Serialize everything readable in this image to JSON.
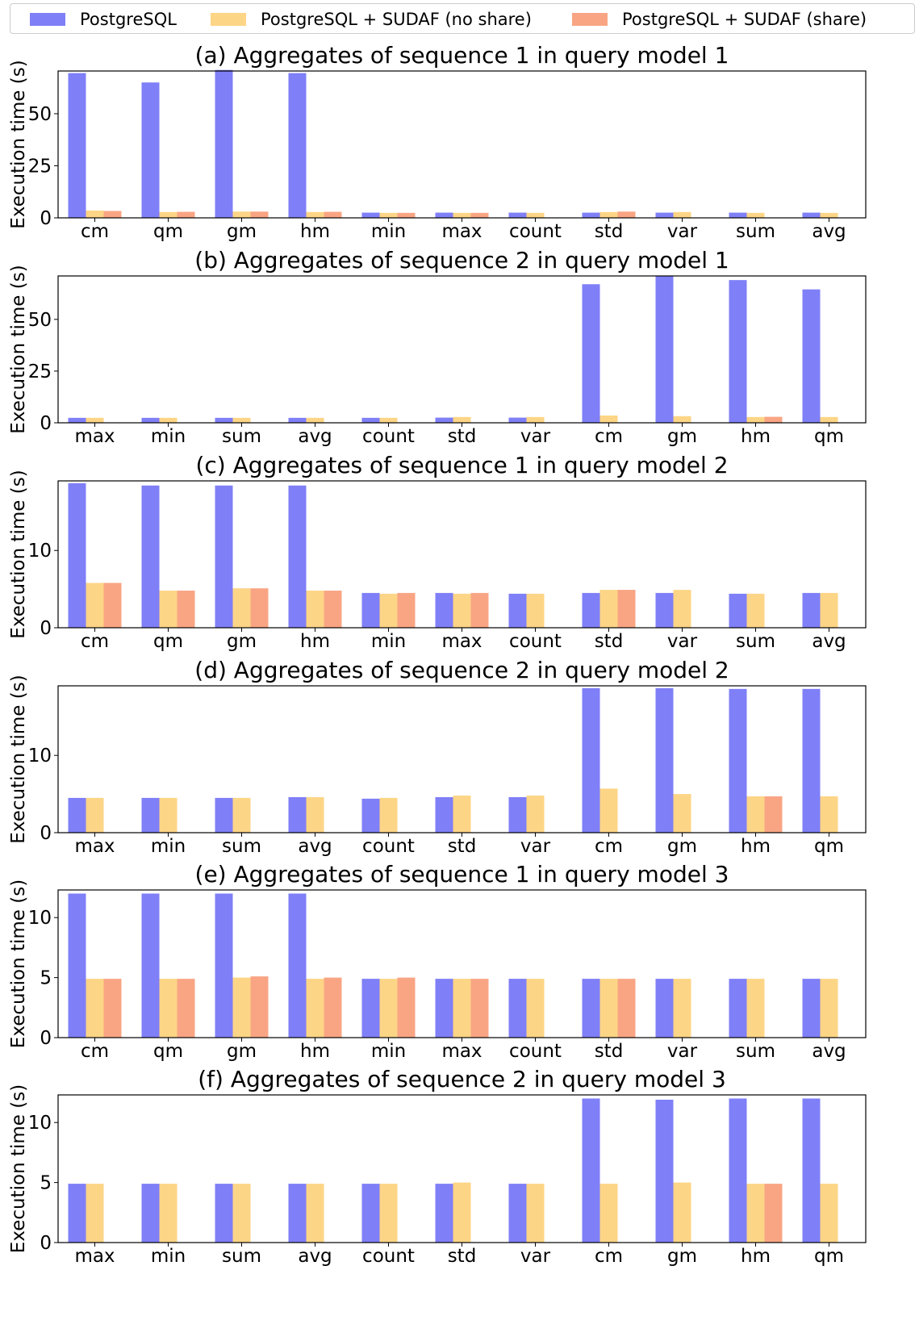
{
  "legend": {
    "entries": [
      {
        "label": "PostgreSQL",
        "color": "#7f7ff7"
      },
      {
        "label": "PostgreSQL + SUDAF (no share)",
        "color": "#fdd586"
      },
      {
        "label": "PostgreSQL + SUDAF (share)",
        "color": "#f9a584"
      }
    ]
  },
  "chart_data": [
    {
      "type": "bar",
      "title": "(a) Aggregates of sequence 1 in query model 1",
      "ylabel": "Execution time (s)",
      "ylim": [
        0,
        70.5
      ],
      "yticks": [
        0,
        25,
        50
      ],
      "categories": [
        "cm",
        "qm",
        "gm",
        "hm",
        "min",
        "max",
        "count",
        "std",
        "var",
        "sum",
        "avg"
      ],
      "series": [
        {
          "name": "PostgreSQL",
          "values": [
            69.5,
            65.0,
            71.0,
            69.5,
            2.5,
            2.5,
            2.5,
            2.5,
            2.5,
            2.5,
            2.5
          ]
        },
        {
          "name": "PostgreSQL + SUDAF (no share)",
          "values": [
            3.5,
            2.8,
            3.0,
            2.8,
            2.4,
            2.4,
            2.4,
            2.8,
            2.8,
            2.4,
            2.4
          ]
        },
        {
          "name": "PostgreSQL + SUDAF (share)",
          "values": [
            3.3,
            2.9,
            3.0,
            2.9,
            2.4,
            2.4,
            0,
            3.0,
            0,
            0,
            0
          ]
        }
      ]
    },
    {
      "type": "bar",
      "title": "(b) Aggregates of sequence 2 in query model 1",
      "ylabel": "Execution time (s)",
      "ylim": [
        0,
        71
      ],
      "yticks": [
        0,
        25,
        50
      ],
      "categories": [
        "max",
        "min",
        "sum",
        "avg",
        "count",
        "std",
        "var",
        "cm",
        "gm",
        "hm",
        "qm"
      ],
      "series": [
        {
          "name": "PostgreSQL",
          "values": [
            2.4,
            2.4,
            2.4,
            2.4,
            2.4,
            2.5,
            2.5,
            67.0,
            71.0,
            69.0,
            64.5
          ]
        },
        {
          "name": "PostgreSQL + SUDAF (no share)",
          "values": [
            2.4,
            2.4,
            2.4,
            2.4,
            2.4,
            2.8,
            2.8,
            3.5,
            3.2,
            2.8,
            2.8
          ]
        },
        {
          "name": "PostgreSQL + SUDAF (share)",
          "values": [
            0,
            0,
            0,
            0,
            0,
            0,
            0,
            0,
            0,
            2.9,
            0
          ]
        }
      ]
    },
    {
      "type": "bar",
      "title": "(c) Aggregates of sequence 1 in query model 2",
      "ylabel": "Execution time (s)",
      "ylim": [
        0,
        19
      ],
      "yticks": [
        0,
        10
      ],
      "categories": [
        "cm",
        "qm",
        "gm",
        "hm",
        "min",
        "max",
        "count",
        "std",
        "var",
        "sum",
        "avg"
      ],
      "series": [
        {
          "name": "PostgreSQL",
          "values": [
            18.7,
            18.4,
            18.4,
            18.4,
            4.5,
            4.5,
            4.4,
            4.5,
            4.5,
            4.4,
            4.5
          ]
        },
        {
          "name": "PostgreSQL + SUDAF (no share)",
          "values": [
            5.8,
            4.8,
            5.1,
            4.8,
            4.4,
            4.4,
            4.4,
            4.9,
            4.9,
            4.4,
            4.5
          ]
        },
        {
          "name": "PostgreSQL + SUDAF (share)",
          "values": [
            5.8,
            4.8,
            5.1,
            4.8,
            4.5,
            4.5,
            0,
            4.9,
            0,
            0,
            0
          ]
        }
      ]
    },
    {
      "type": "bar",
      "title": "(d) Aggregates of sequence 2 in query model 2",
      "ylabel": "Execution time (s)",
      "ylim": [
        0,
        19
      ],
      "yticks": [
        0,
        10
      ],
      "categories": [
        "max",
        "min",
        "sum",
        "avg",
        "count",
        "std",
        "var",
        "cm",
        "gm",
        "hm",
        "qm"
      ],
      "series": [
        {
          "name": "PostgreSQL",
          "values": [
            4.5,
            4.5,
            4.5,
            4.6,
            4.4,
            4.6,
            4.6,
            18.7,
            18.7,
            18.6,
            18.6
          ]
        },
        {
          "name": "PostgreSQL + SUDAF (no share)",
          "values": [
            4.5,
            4.5,
            4.5,
            4.6,
            4.5,
            4.8,
            4.8,
            5.7,
            5.0,
            4.7,
            4.7
          ]
        },
        {
          "name": "PostgreSQL + SUDAF (share)",
          "values": [
            0,
            0,
            0,
            0,
            0,
            0,
            0,
            0,
            0,
            4.7,
            0
          ]
        }
      ]
    },
    {
      "type": "bar",
      "title": "(e) Aggregates of sequence 1 in query model 3",
      "ylabel": "Execution time (s)",
      "ylim": [
        0,
        12.3
      ],
      "yticks": [
        0,
        5,
        10
      ],
      "categories": [
        "cm",
        "qm",
        "gm",
        "hm",
        "min",
        "max",
        "count",
        "std",
        "var",
        "sum",
        "avg"
      ],
      "series": [
        {
          "name": "PostgreSQL",
          "values": [
            12.0,
            12.0,
            12.0,
            12.0,
            4.9,
            4.9,
            4.9,
            4.9,
            4.9,
            4.9,
            4.9
          ]
        },
        {
          "name": "PostgreSQL + SUDAF (no share)",
          "values": [
            4.9,
            4.9,
            5.0,
            4.9,
            4.9,
            4.9,
            4.9,
            4.9,
            4.9,
            4.9,
            4.9
          ]
        },
        {
          "name": "PostgreSQL + SUDAF (share)",
          "values": [
            4.9,
            4.9,
            5.1,
            5.0,
            5.0,
            4.9,
            0,
            4.9,
            0,
            0,
            0
          ]
        }
      ]
    },
    {
      "type": "bar",
      "title": "(f) Aggregates of sequence 2 in query model 3",
      "ylabel": "Execution time (s)",
      "ylim": [
        0,
        12.3
      ],
      "yticks": [
        0,
        5,
        10
      ],
      "categories": [
        "max",
        "min",
        "sum",
        "avg",
        "count",
        "std",
        "var",
        "cm",
        "gm",
        "hm",
        "qm"
      ],
      "series": [
        {
          "name": "PostgreSQL",
          "values": [
            4.9,
            4.9,
            4.9,
            4.9,
            4.9,
            4.9,
            4.9,
            12.0,
            11.9,
            12.0,
            12.0
          ]
        },
        {
          "name": "PostgreSQL + SUDAF (no share)",
          "values": [
            4.9,
            4.9,
            4.9,
            4.9,
            4.9,
            5.0,
            4.9,
            4.9,
            5.0,
            4.9,
            4.9
          ]
        },
        {
          "name": "PostgreSQL + SUDAF (share)",
          "values": [
            0,
            0,
            0,
            0,
            0,
            0,
            0,
            0,
            0,
            4.9,
            0
          ]
        }
      ]
    }
  ]
}
